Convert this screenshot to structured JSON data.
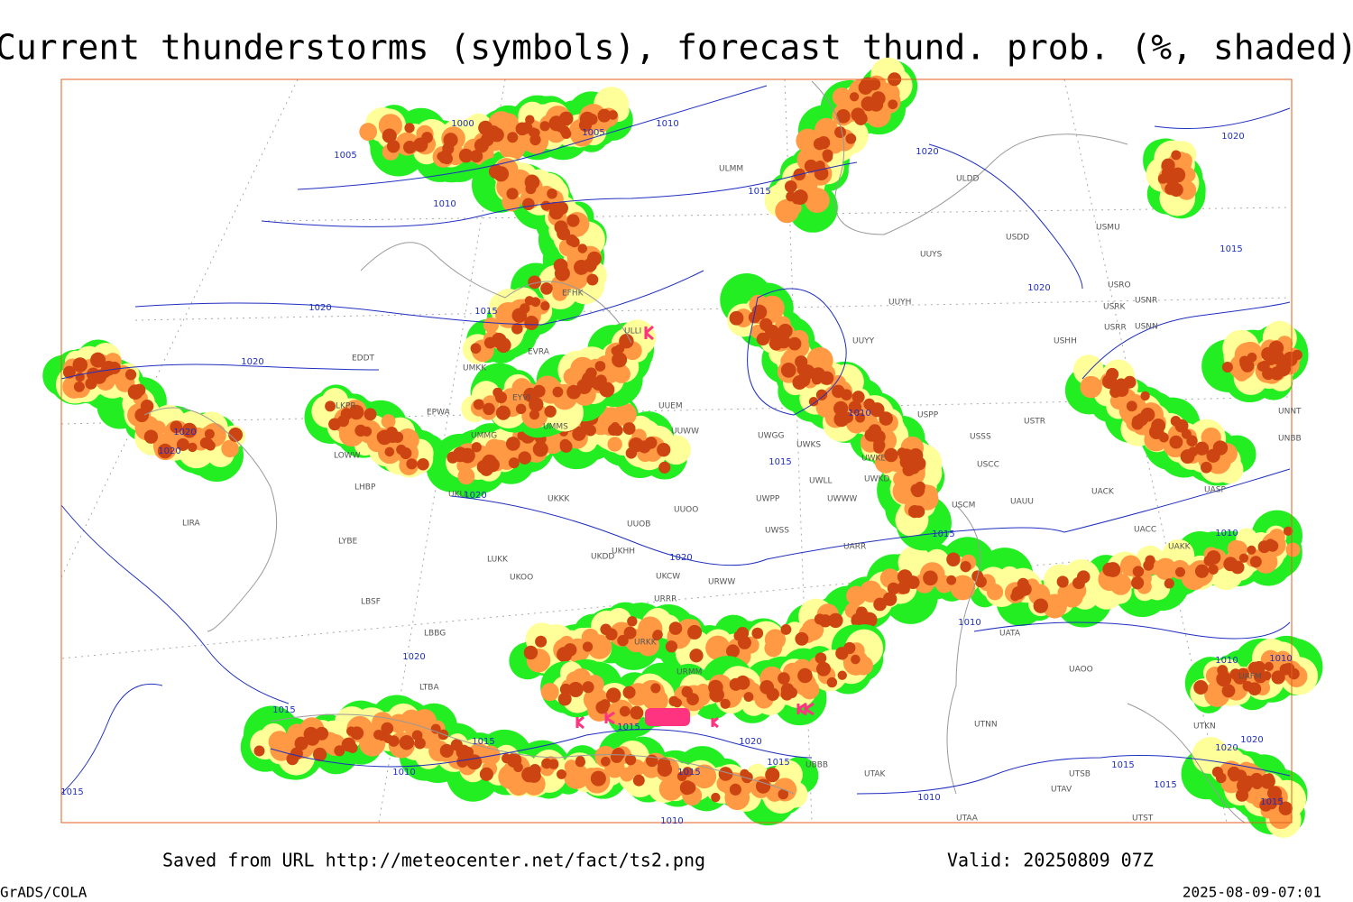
{
  "header": {
    "title": "Current thunderstorms (symbols), forecast thund. prob. (%, shaded)"
  },
  "footer": {
    "source": "Saved from URL http://meteocenter.net/fact/ts2.png",
    "valid": "Valid: 20250809 07Z",
    "software": "GrADS/COLA",
    "timestamp": "2025-08-09-07:01"
  },
  "map": {
    "stations": [
      "EFHK",
      "ULLI",
      "UMKK",
      "EVRA",
      "EDDT",
      "EPWA",
      "UMMS",
      "UMMG",
      "EYVI",
      "LKPR",
      "LOWW",
      "LHBP",
      "LIRA",
      "LYBE",
      "LBSF",
      "LBBG",
      "LTBA",
      "UKLL",
      "UKKK",
      "UUEM",
      "UUWW",
      "UUOO",
      "UUOB",
      "UKHH",
      "UKDD",
      "UKCW",
      "UKOO",
      "LUKK",
      "URWW",
      "URRR",
      "UWPP",
      "UWSS",
      "UWKS",
      "UWGG",
      "UWWW",
      "UWLL",
      "UWKE",
      "UWKD",
      "UARR",
      "USPP",
      "USSS",
      "USTR",
      "USCC",
      "USCM",
      "UAUU",
      "UACC",
      "UAKK",
      "UAOO",
      "UATA",
      "UTNN",
      "UTSB",
      "UTAV",
      "UTAA",
      "UTST",
      "UAFM",
      "UTKN",
      "UUYY",
      "UUYH",
      "UUYS",
      "ULDD",
      "USDD",
      "USMU",
      "USRO",
      "USRK",
      "USRR",
      "USNR",
      "USNN",
      "USHH",
      "UNNT",
      "UNBB",
      "UACK",
      "UASP",
      "ULMM",
      "UGTB",
      "URMM",
      "URKK",
      "UBBB",
      "UTAK"
    ],
    "isobars": [
      "1000",
      "1005",
      "1005",
      "1010",
      "1010",
      "1015",
      "1015",
      "1020",
      "1020",
      "1015",
      "1020",
      "1020",
      "1020",
      "1020",
      "1020",
      "1020",
      "1010",
      "1015",
      "1015",
      "1020",
      "1010",
      "1010",
      "1020",
      "1015",
      "1015",
      "1015",
      "1020",
      "1015",
      "1015",
      "1010",
      "1015",
      "1010",
      "1010",
      "1010",
      "1010",
      "1020",
      "1020",
      "1015",
      "1015",
      "1015"
    ]
  }
}
